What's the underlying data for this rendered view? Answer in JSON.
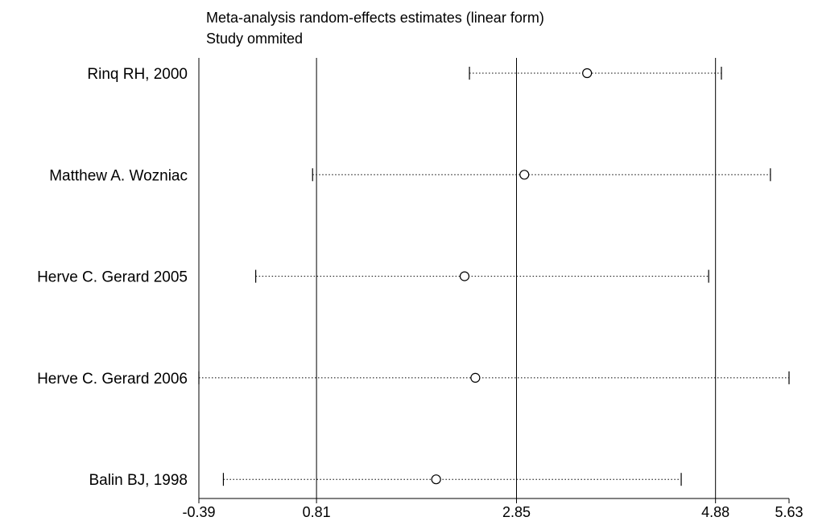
{
  "chart_data": {
    "type": "forest",
    "title": "Meta-analysis random-effects estimates (linear form)",
    "subtitle": "Study ommited",
    "xlim": [
      -0.39,
      5.63
    ],
    "xticks": [
      -0.39,
      0.81,
      2.85,
      4.88,
      5.63
    ],
    "xtick_labels": [
      "-0.39",
      "0.81",
      "2.85",
      "4.88",
      "5.63"
    ],
    "reference_lines": [
      0.81,
      2.85,
      4.88
    ],
    "studies": [
      {
        "label": "Rinq RH, 2000",
        "estimate": 3.57,
        "lower": 2.37,
        "upper": 4.94
      },
      {
        "label": "Matthew A. Wozniac",
        "estimate": 2.93,
        "lower": 0.77,
        "upper": 5.44
      },
      {
        "label": "Herve C. Gerard 2005",
        "estimate": 2.32,
        "lower": 0.19,
        "upper": 4.81
      },
      {
        "label": "Herve C. Gerard 2006",
        "estimate": 2.43,
        "lower": -0.39,
        "upper": 5.63
      },
      {
        "label": "Balin BJ, 1998",
        "estimate": 2.03,
        "lower": -0.14,
        "upper": 4.53
      }
    ]
  }
}
